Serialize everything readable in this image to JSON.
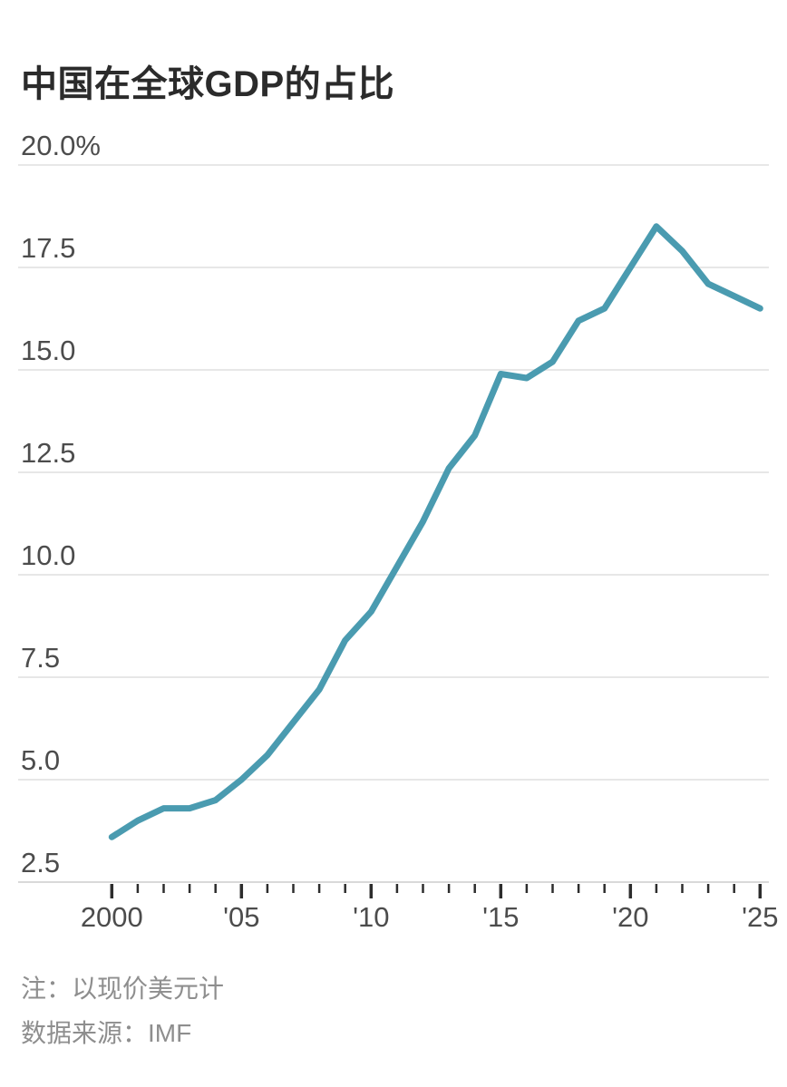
{
  "page": {
    "background": "#ffffff"
  },
  "title": "中国在全球GDP的占比",
  "notes": {
    "note": "注：以现价美元计",
    "source": "数据来源：IMF"
  },
  "chart_data": {
    "type": "line",
    "title": "中国在全球GDP的占比",
    "unit": "%",
    "x": [
      2000,
      2001,
      2002,
      2003,
      2004,
      2005,
      2006,
      2007,
      2008,
      2009,
      2010,
      2011,
      2012,
      2013,
      2014,
      2015,
      2016,
      2017,
      2018,
      2019,
      2020,
      2021,
      2022,
      2023,
      2024,
      2025
    ],
    "values": [
      3.6,
      4.0,
      4.3,
      4.3,
      4.5,
      5.0,
      5.6,
      6.4,
      7.2,
      8.4,
      9.1,
      10.2,
      11.3,
      12.6,
      13.4,
      14.9,
      14.8,
      15.2,
      16.2,
      16.5,
      17.5,
      18.5,
      17.9,
      17.1,
      16.8,
      16.5
    ],
    "ylim": [
      2.5,
      20.0
    ],
    "yticks": [
      20.0,
      17.5,
      15.0,
      12.5,
      10.0,
      7.5,
      5.0,
      2.5
    ],
    "ytick_labels": [
      "20.0%",
      "17.5",
      "15.0",
      "12.5",
      "10.0",
      "7.5",
      "5.0",
      "2.5"
    ],
    "xtick_years": [
      2000,
      2005,
      2010,
      2015,
      2020,
      2025
    ],
    "xtick_labels": [
      "2000",
      "'05",
      "'10",
      "'15",
      "'20",
      "'25"
    ],
    "minor_tick_years": "every year 2000-2025",
    "grid": "horizontal",
    "legend": "none",
    "colors": {
      "line": "#4a9bb0",
      "grid": "#e7e7e7",
      "axis": "#d9d9d9",
      "tick": "#2d2d2d",
      "tick_label": "#4c4c4c",
      "title": "#2b2b2b",
      "note": "#8e8e8e",
      "background": "#ffffff"
    }
  }
}
